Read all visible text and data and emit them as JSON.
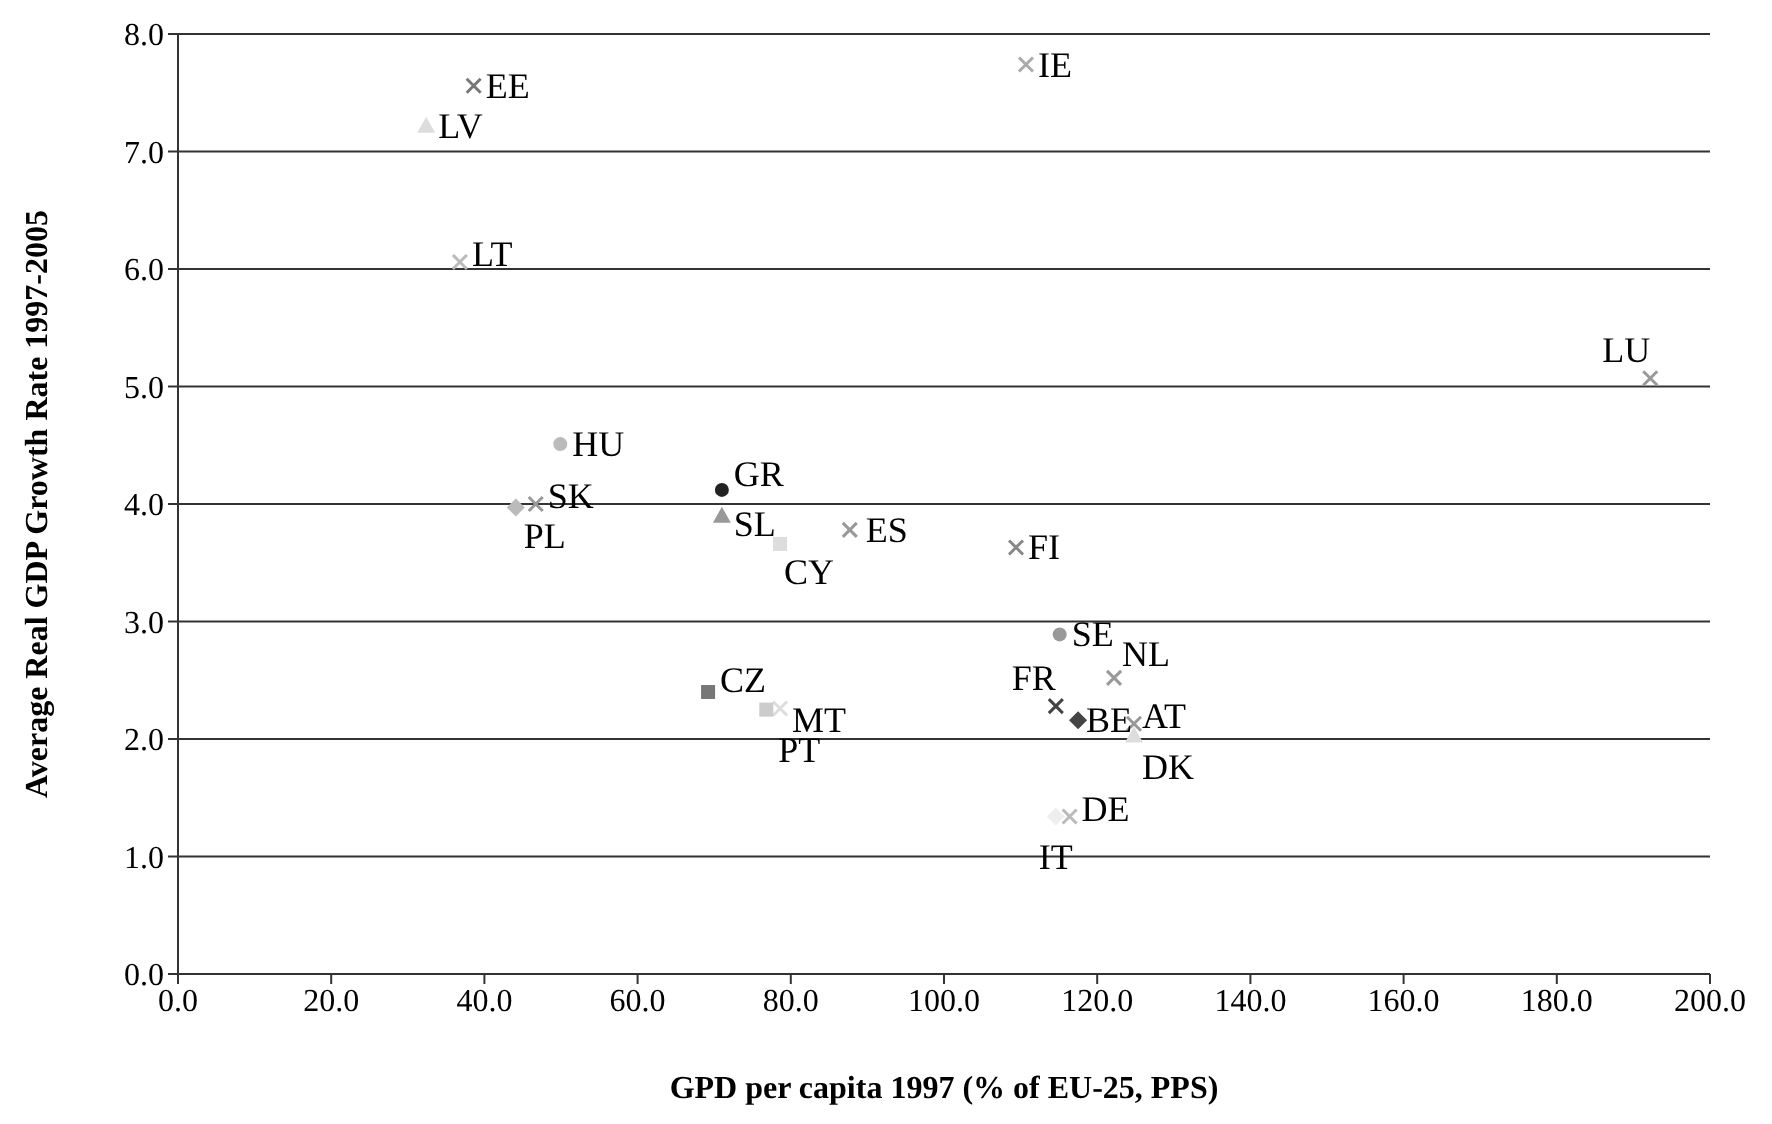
{
  "chart_data": {
    "type": "scatter",
    "xlabel": "GPD per capita 1997 (% of EU-25, PPS)",
    "ylabel": "Average Real GDP Growth Rate 1997-2005",
    "xlim": [
      0,
      200
    ],
    "ylim": [
      0,
      8
    ],
    "xticks": [
      {
        "value": 0,
        "label": "0.0"
      },
      {
        "value": 20,
        "label": "20.0"
      },
      {
        "value": 40,
        "label": "40.0"
      },
      {
        "value": 60,
        "label": "60.0"
      },
      {
        "value": 80,
        "label": "80.0"
      },
      {
        "value": 100,
        "label": "100.0"
      },
      {
        "value": 120,
        "label": "120.0"
      },
      {
        "value": 140,
        "label": "140.0"
      },
      {
        "value": 160,
        "label": "160.0"
      },
      {
        "value": 180,
        "label": "180.0"
      },
      {
        "value": 200,
        "label": "200.0"
      }
    ],
    "yticks": [
      {
        "value": 0,
        "label": "0.0"
      },
      {
        "value": 1,
        "label": "1.0"
      },
      {
        "value": 2,
        "label": "2.0"
      },
      {
        "value": 3,
        "label": "3.0"
      },
      {
        "value": 4,
        "label": "4.0"
      },
      {
        "value": 5,
        "label": "5.0"
      },
      {
        "value": 6,
        "label": "6.0"
      },
      {
        "value": 7,
        "label": "7.0"
      },
      {
        "value": 8,
        "label": "8.0"
      }
    ],
    "grid": "y",
    "legend": false,
    "series": [
      {
        "name": "EE",
        "color": "#777777",
        "marker": "cross",
        "x": [
          38.6
        ],
        "values": [
          7.56
        ]
      },
      {
        "name": "LV",
        "color": "#dddddd",
        "marker": "triangle",
        "x": [
          32.4
        ],
        "values": [
          7.22
        ]
      },
      {
        "name": "LT",
        "color": "#bbbbbb",
        "marker": "cross",
        "x": [
          36.8
        ],
        "values": [
          6.06
        ]
      },
      {
        "name": "IE",
        "color": "#aaaaaa",
        "marker": "cross",
        "x": [
          110.7
        ],
        "values": [
          7.74
        ]
      },
      {
        "name": "LU",
        "color": "#999999",
        "marker": "cross",
        "x": [
          192.2
        ],
        "values": [
          5.07
        ]
      },
      {
        "name": "HU",
        "color": "#bbbbbb",
        "marker": "circle",
        "x": [
          49.9
        ],
        "values": [
          4.51
        ]
      },
      {
        "name": "SK",
        "color": "#999999",
        "marker": "cross",
        "x": [
          46.7
        ],
        "values": [
          4.0
        ]
      },
      {
        "name": "PL",
        "color": "#bbbbbb",
        "marker": "diamond",
        "x": [
          44.1
        ],
        "values": [
          3.97
        ]
      },
      {
        "name": "GR",
        "color": "#222222",
        "marker": "circle",
        "x": [
          71.0
        ],
        "values": [
          4.12
        ]
      },
      {
        "name": "SL",
        "color": "#999999",
        "marker": "triangle",
        "x": [
          71.0
        ],
        "values": [
          3.9
        ]
      },
      {
        "name": "CY",
        "color": "#dddddd",
        "marker": "square",
        "x": [
          78.6
        ],
        "values": [
          3.66
        ]
      },
      {
        "name": "ES",
        "color": "#999999",
        "marker": "cross",
        "x": [
          87.7
        ],
        "values": [
          3.78
        ]
      },
      {
        "name": "FI",
        "color": "#888888",
        "marker": "cross",
        "x": [
          109.4
        ],
        "values": [
          3.63
        ]
      },
      {
        "name": "SE",
        "color": "#999999",
        "marker": "circle",
        "x": [
          115.1
        ],
        "values": [
          2.89
        ]
      },
      {
        "name": "CZ",
        "color": "#777777",
        "marker": "square",
        "x": [
          69.2
        ],
        "values": [
          2.4
        ]
      },
      {
        "name": "MT",
        "color": "#dddddd",
        "marker": "cross",
        "x": [
          78.6
        ],
        "values": [
          2.26
        ]
      },
      {
        "name": "PT",
        "color": "#cccccc",
        "marker": "square",
        "x": [
          76.8
        ],
        "values": [
          2.25
        ]
      },
      {
        "name": "FR",
        "color": "#444444",
        "marker": "cross",
        "x": [
          114.6
        ],
        "values": [
          2.28
        ]
      },
      {
        "name": "BE",
        "color": "#444444",
        "marker": "diamond",
        "x": [
          117.5
        ],
        "values": [
          2.16
        ]
      },
      {
        "name": "NL",
        "color": "#999999",
        "marker": "cross",
        "x": [
          122.2
        ],
        "values": [
          2.52
        ]
      },
      {
        "name": "AT",
        "color": "#999999",
        "marker": "cross",
        "x": [
          124.8
        ],
        "values": [
          2.13
        ]
      },
      {
        "name": "DK",
        "color": "#dddddd",
        "marker": "triangle",
        "x": [
          124.8
        ],
        "values": [
          2.03
        ]
      },
      {
        "name": "DE",
        "color": "#bbbbbb",
        "marker": "cross",
        "x": [
          116.4
        ],
        "values": [
          1.34
        ]
      },
      {
        "name": "IT",
        "color": "#eeeeee",
        "marker": "diamond",
        "x": [
          114.6
        ],
        "values": [
          1.34
        ]
      }
    ]
  }
}
